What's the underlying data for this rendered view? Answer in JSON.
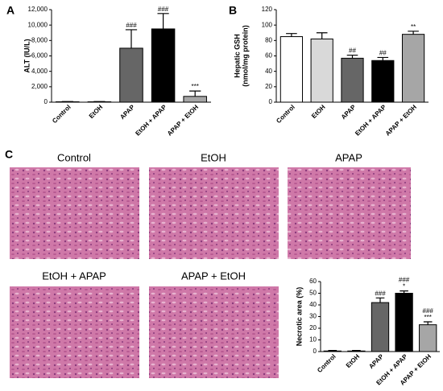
{
  "panels": [
    "A",
    "B",
    "C"
  ],
  "images": [
    "Control",
    "EtOH",
    "APAP",
    "EtOH + APAP",
    "APAP + EtOH"
  ],
  "chart_data": [
    {
      "type": "bar",
      "ylabel": [
        "ALT (IU/L)"
      ],
      "categories": [
        "Control",
        "EtOH",
        "APAP",
        "EtOH + APAP",
        "APAP + EtOH"
      ],
      "values": [
        50,
        50,
        7000,
        9500,
        750
      ],
      "errors": [
        30,
        30,
        2400,
        2000,
        700
      ],
      "colors": [
        "#ffffff",
        "#d9d9d9",
        "#666666",
        "#000000",
        "#a6a6a6"
      ],
      "annotations": [
        null,
        null,
        [
          "###"
        ],
        [
          "###"
        ],
        [
          "***"
        ]
      ],
      "ylim": [
        0,
        12000
      ],
      "yticks": [
        0,
        {
          "value": 2000,
          "label": "2,000"
        },
        {
          "value": 4000,
          "label": "4,000"
        },
        {
          "value": 6000,
          "label": "6,000"
        },
        {
          "value": 8000,
          "label": "8,000"
        },
        {
          "value": 10000,
          "label": "10,000"
        },
        {
          "value": 12000,
          "label": "12,000"
        }
      ]
    },
    {
      "type": "bar",
      "ylabel": [
        "Hepatic GSH",
        "(nmol/mg protein)"
      ],
      "categories": [
        "Control",
        "EtOH",
        "APAP",
        "EtOH + APAP",
        "APAP + EtOH"
      ],
      "values": [
        85,
        82,
        57,
        54,
        88
      ],
      "errors": [
        4,
        8,
        4,
        4,
        4
      ],
      "colors": [
        "#ffffff",
        "#d9d9d9",
        "#666666",
        "#000000",
        "#a6a6a6"
      ],
      "annotations": [
        null,
        null,
        [
          "##"
        ],
        [
          "##"
        ],
        [
          "**"
        ]
      ],
      "ylim": [
        0,
        120
      ],
      "yticks": [
        0,
        20,
        40,
        60,
        80,
        100,
        120
      ]
    },
    {
      "type": "bar",
      "ylabel": [
        "Necrotic area (%)"
      ],
      "categories": [
        "Control",
        "EtOH",
        "APAP",
        "EtOH + APAP",
        "APAP + EtOH"
      ],
      "values": [
        0.5,
        0.5,
        42,
        50,
        23
      ],
      "errors": [
        0.5,
        0.5,
        4,
        2,
        2.5
      ],
      "colors": [
        "#ffffff",
        "#d9d9d9",
        "#666666",
        "#000000",
        "#a6a6a6"
      ],
      "annotations": [
        null,
        null,
        [
          "###"
        ],
        [
          "###",
          "*"
        ],
        [
          "###",
          "***"
        ]
      ],
      "ylim": [
        0,
        60
      ],
      "yticks": [
        0,
        10,
        20,
        30,
        40,
        50,
        60
      ]
    }
  ]
}
